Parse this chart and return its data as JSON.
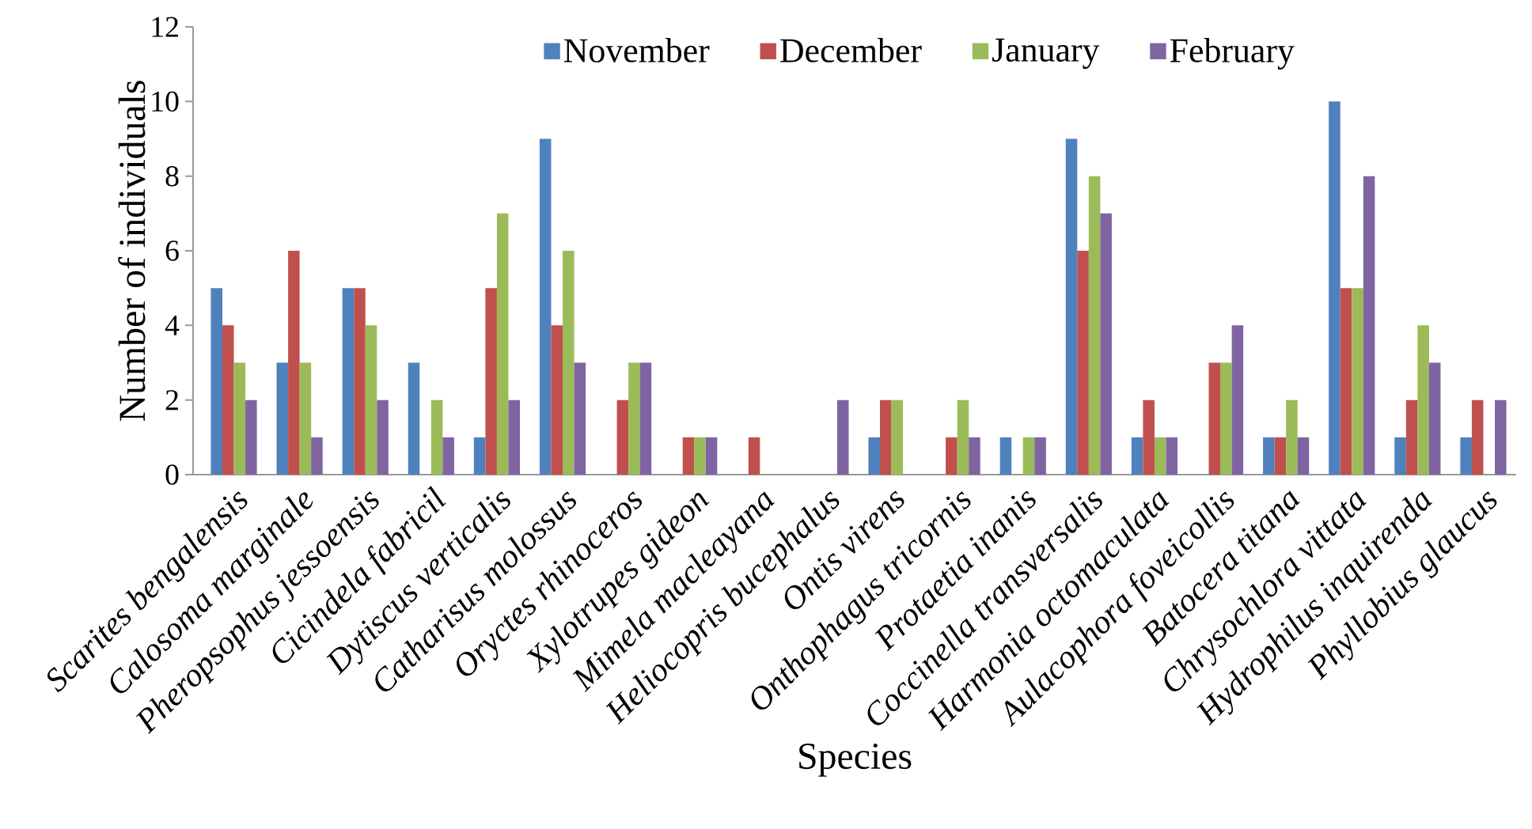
{
  "chart_data": {
    "type": "bar",
    "xlabel": "Species",
    "ylabel": "Number of individuals",
    "legend": "top",
    "categories": [
      "Scarites bengalensis",
      "Calosoma marginale",
      "Pheropsophus jessoensis",
      "Cicindela fabricil",
      "Dytiscus verticalis",
      "Catharisus molossus",
      "Oryctes rhinoceros",
      "Xylotrupes gideon",
      "Mimela macleayana",
      "Heliocopris bucephalus",
      "Ontis virens",
      "Onthophagus tricornis",
      "Protaetia inanis",
      "Coccinella transversalis",
      "Harmonia octomaculata",
      "Aulacophora foveicollis",
      "Batocera titana",
      "Chrysochlora vittata",
      "Hydrophilus inquirenda",
      "Phyllobius glaucus"
    ],
    "series": [
      {
        "name": "November",
        "color": "#4f81bd",
        "values": [
          5,
          3,
          5,
          3,
          1,
          9,
          0,
          0,
          0,
          0,
          1,
          0,
          1,
          9,
          1,
          0,
          1,
          10,
          1,
          1
        ]
      },
      {
        "name": "December",
        "color": "#c0504d",
        "values": [
          4,
          6,
          5,
          0,
          5,
          4,
          2,
          1,
          1,
          0,
          2,
          1,
          0,
          6,
          2,
          3,
          1,
          5,
          2,
          2
        ]
      },
      {
        "name": "January",
        "color": "#9bbb59",
        "values": [
          3,
          3,
          4,
          2,
          7,
          6,
          3,
          1,
          0,
          0,
          2,
          2,
          1,
          8,
          1,
          3,
          2,
          5,
          4,
          0
        ]
      },
      {
        "name": "February",
        "color": "#8064a2",
        "values": [
          2,
          1,
          2,
          1,
          2,
          3,
          3,
          1,
          0,
          2,
          0,
          1,
          1,
          7,
          1,
          4,
          1,
          8,
          3,
          2
        ]
      }
    ],
    "ylim": [
      0,
      12
    ],
    "yticks": [
      0,
      2,
      4,
      6,
      8,
      10,
      12
    ]
  }
}
